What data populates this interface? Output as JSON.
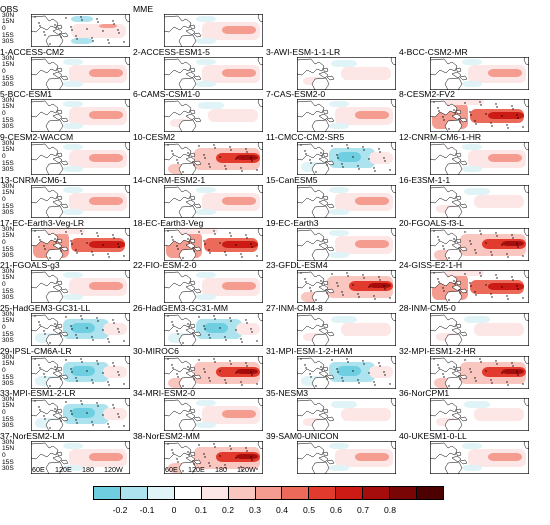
{
  "figure": {
    "panels": [
      {
        "title": "OBS",
        "col": 0,
        "row": 0,
        "pattern": "obs"
      },
      {
        "title": "MME",
        "col": 1,
        "row": 0,
        "pattern": "east"
      },
      {
        "title": "1-ACCESS-CM2",
        "col": 0,
        "row": 1,
        "pattern": "east"
      },
      {
        "title": "2-ACCESS-ESM1-5",
        "col": 1,
        "row": 1,
        "pattern": "east"
      },
      {
        "title": "3-AWI-ESM-1-1-LR",
        "col": 2,
        "row": 1,
        "pattern": "weak"
      },
      {
        "title": "4-BCC-CSM2-MR",
        "col": 3,
        "row": 1,
        "pattern": "east"
      },
      {
        "title": "5-BCC-ESM1",
        "col": 0,
        "row": 2,
        "pattern": "east"
      },
      {
        "title": "6-CAMS-CSM1-0",
        "col": 1,
        "row": 2,
        "pattern": "weak"
      },
      {
        "title": "7-CAS-ESM2-0",
        "col": 2,
        "row": 2,
        "pattern": "east"
      },
      {
        "title": "8-CESM2-FV2",
        "col": 3,
        "row": 2,
        "pattern": "strongwest"
      },
      {
        "title": "9-CESM2-WACCM",
        "col": 0,
        "row": 3,
        "pattern": "east"
      },
      {
        "title": "10-CESM2",
        "col": 1,
        "row": 3,
        "pattern": "strong"
      },
      {
        "title": "11-CMCC-CM2-SR5",
        "col": 2,
        "row": 3,
        "pattern": "cold"
      },
      {
        "title": "12-CNRM-CM6-1-HR",
        "col": 3,
        "row": 3,
        "pattern": "east"
      },
      {
        "title": "13-CNRM-CM6-1",
        "col": 0,
        "row": 4,
        "pattern": "east"
      },
      {
        "title": "14-CNRM-ESM2-1",
        "col": 1,
        "row": 4,
        "pattern": "east"
      },
      {
        "title": "15-CanESM5",
        "col": 2,
        "row": 4,
        "pattern": "east"
      },
      {
        "title": "16-E3SM-1-1",
        "col": 3,
        "row": 4,
        "pattern": "weak"
      },
      {
        "title": "17-EC-Earth3-Veg-LR",
        "col": 0,
        "row": 5,
        "pattern": "strongwest"
      },
      {
        "title": "18-EC-Earth3-Veg",
        "col": 1,
        "row": 5,
        "pattern": "strongwest"
      },
      {
        "title": "19-EC-Earth3",
        "col": 2,
        "row": 5,
        "pattern": "east"
      },
      {
        "title": "20-FGOALS-f3-L",
        "col": 3,
        "row": 5,
        "pattern": "strong"
      },
      {
        "title": "21-FGOALS-g3",
        "col": 0,
        "row": 6,
        "pattern": "east"
      },
      {
        "title": "22-FIO-ESM-2-0",
        "col": 1,
        "row": 6,
        "pattern": "east"
      },
      {
        "title": "23-GFDL-ESM4",
        "col": 2,
        "row": 6,
        "pattern": "strong"
      },
      {
        "title": "24-GISS-E2-1-H",
        "col": 3,
        "row": 6,
        "pattern": "strongwest"
      },
      {
        "title": "25-HadGEM3-GC31-LL",
        "col": 0,
        "row": 7,
        "pattern": "cold"
      },
      {
        "title": "26-HadGEM3-GC31-MM",
        "col": 1,
        "row": 7,
        "pattern": "cold"
      },
      {
        "title": "27-INM-CM4-8",
        "col": 2,
        "row": 7,
        "pattern": "weak"
      },
      {
        "title": "28-INM-CM5-0",
        "col": 3,
        "row": 7,
        "pattern": "weak"
      },
      {
        "title": "29-IPSL-CM6A-LR",
        "col": 0,
        "row": 8,
        "pattern": "cold"
      },
      {
        "title": "30-MIROC6",
        "col": 1,
        "row": 8,
        "pattern": "strong"
      },
      {
        "title": "31-MPI-ESM-1-2-HAM",
        "col": 2,
        "row": 8,
        "pattern": "cold"
      },
      {
        "title": "32-MPI-ESM1-2-HR",
        "col": 3,
        "row": 8,
        "pattern": "strong"
      },
      {
        "title": "33-MPI-ESM1-2-LR",
        "col": 0,
        "row": 9,
        "pattern": "cold"
      },
      {
        "title": "34-MRI-ESM2-0",
        "col": 1,
        "row": 9,
        "pattern": "east"
      },
      {
        "title": "35-NESM3",
        "col": 2,
        "row": 9,
        "pattern": "weak"
      },
      {
        "title": "36-NorCPM1",
        "col": 3,
        "row": 9,
        "pattern": "weak"
      },
      {
        "title": "37-NorESM2-LM",
        "col": 0,
        "row": 10,
        "pattern": "east"
      },
      {
        "title": "38-NorESM2-MM",
        "col": 1,
        "row": 10,
        "pattern": "strong"
      },
      {
        "title": "39-SAM0-UNICON",
        "col": 2,
        "row": 10,
        "pattern": "east"
      },
      {
        "title": "40-UKESM1-0-LL",
        "col": 3,
        "row": 10,
        "pattern": "east"
      }
    ],
    "latitude_labels": [
      "30N",
      "15N",
      "0",
      "15S",
      "30S"
    ],
    "longitude_labels": [
      "60E",
      "120E",
      "180",
      "120W"
    ],
    "colorbar": {
      "colors": [
        "#6fcfe0",
        "#ade3ee",
        "#e0f4f7",
        "#ffffff",
        "#fde6e6",
        "#f9c6c0",
        "#f39c8f",
        "#ec6a5a",
        "#e23a2c",
        "#cc1a14",
        "#a50d0d",
        "#7a0505",
        "#4d0000"
      ],
      "labels": [
        "-0.2",
        "-0.1",
        "0",
        "0.1",
        "0.2",
        "0.3",
        "0.4",
        "0.5",
        "0.6",
        "0.7",
        "0.8"
      ]
    }
  }
}
